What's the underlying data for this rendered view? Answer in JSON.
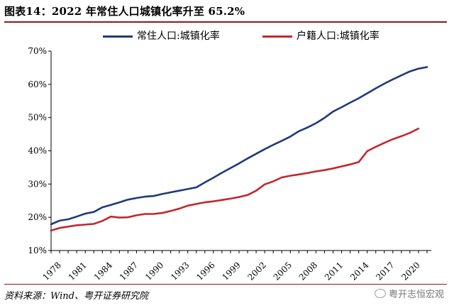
{
  "header": {
    "title": "图表14：2022 年常住人口城镇化率升至 65.2%"
  },
  "footer": {
    "source": "资料来源：Wind、粤开证券研究院",
    "watermark": "粤开志恒宏观"
  },
  "chart_data": {
    "type": "line",
    "title": "",
    "xlabel": "",
    "ylabel": "",
    "ylim": [
      10,
      70
    ],
    "yticks": [
      "10%",
      "20%",
      "30%",
      "40%",
      "50%",
      "60%",
      "70%"
    ],
    "xticks": [
      "1978",
      "1981",
      "1984",
      "1987",
      "1990",
      "1993",
      "1996",
      "1999",
      "2002",
      "2005",
      "2008",
      "2011",
      "2014",
      "2017",
      "2020"
    ],
    "legend_position": "top",
    "grid": false,
    "series": [
      {
        "name": "常住人口:城镇化率",
        "color": "#1F3A7A",
        "x": [
          1978,
          1979,
          1980,
          1981,
          1982,
          1983,
          1984,
          1985,
          1986,
          1987,
          1988,
          1989,
          1990,
          1991,
          1992,
          1993,
          1994,
          1995,
          1996,
          1997,
          1998,
          1999,
          2000,
          2001,
          2002,
          2003,
          2004,
          2005,
          2006,
          2007,
          2008,
          2009,
          2010,
          2011,
          2012,
          2013,
          2014,
          2015,
          2016,
          2017,
          2018,
          2019,
          2020,
          2021,
          2022
        ],
        "values": [
          17.9,
          19.0,
          19.4,
          20.2,
          21.1,
          21.6,
          23.0,
          23.7,
          24.5,
          25.3,
          25.8,
          26.2,
          26.4,
          27.0,
          27.5,
          28.0,
          28.5,
          29.0,
          30.5,
          31.9,
          33.4,
          34.8,
          36.2,
          37.7,
          39.1,
          40.5,
          41.8,
          43.0,
          44.3,
          45.9,
          47.0,
          48.3,
          49.9,
          51.8,
          53.1,
          54.5,
          55.8,
          57.3,
          58.8,
          60.2,
          61.5,
          62.7,
          63.9,
          64.7,
          65.2
        ]
      },
      {
        "name": "户籍人口:城镇化率",
        "color": "#C0282D",
        "x": [
          1978,
          1979,
          1980,
          1981,
          1982,
          1983,
          1984,
          1985,
          1986,
          1987,
          1988,
          1989,
          1990,
          1991,
          1992,
          1993,
          1994,
          1995,
          1996,
          1997,
          1998,
          1999,
          2000,
          2001,
          2002,
          2003,
          2004,
          2005,
          2006,
          2007,
          2008,
          2009,
          2010,
          2011,
          2012,
          2013,
          2014,
          2015,
          2016,
          2017,
          2018,
          2019,
          2020,
          2021
        ],
        "values": [
          16.0,
          16.8,
          17.2,
          17.6,
          17.8,
          18.0,
          18.9,
          20.2,
          19.9,
          20.0,
          20.6,
          21.0,
          21.0,
          21.3,
          21.9,
          22.6,
          23.5,
          24.0,
          24.5,
          24.8,
          25.2,
          25.6,
          26.1,
          26.7,
          28.0,
          29.9,
          30.8,
          32.0,
          32.5,
          32.9,
          33.3,
          33.8,
          34.2,
          34.7,
          35.3,
          35.9,
          36.6,
          39.9,
          41.2,
          42.4,
          43.5,
          44.4,
          45.4,
          46.7
        ]
      }
    ]
  }
}
